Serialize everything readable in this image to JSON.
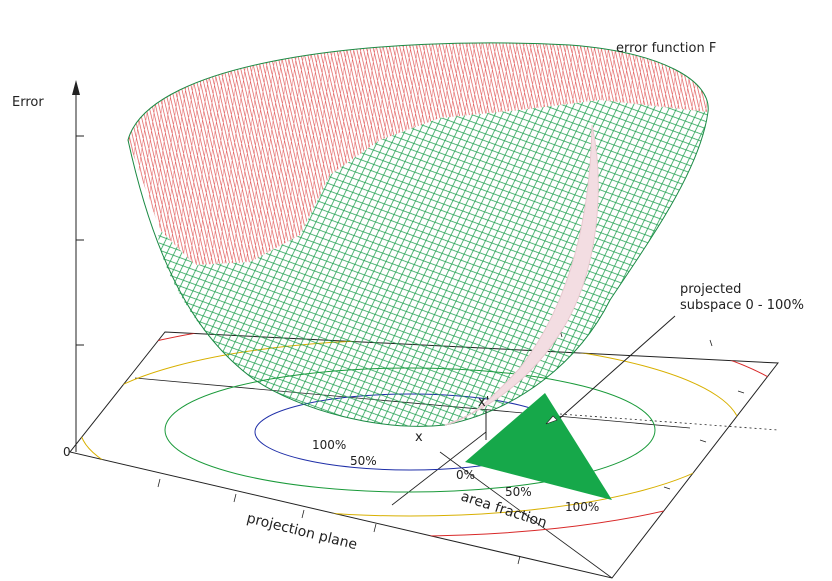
{
  "labels": {
    "error_axis": "Error",
    "zero": "0",
    "error_function": "error function F",
    "projected_line1": "projected",
    "projected_line2": "subspace 0 - 100%",
    "x_prime": "x'",
    "x": "x",
    "plane_100": "100%",
    "plane_50": "50%",
    "area_0": "0%",
    "area_50": "50%",
    "area_100": "100%",
    "area_fraction": "area fraction",
    "projection_plane": "projection plane"
  },
  "colors": {
    "mesh_top": "#e05050",
    "mesh_bottom": "#20a050",
    "triangle": "#16a84a",
    "subspace_slice": "#f3dde2",
    "contour_blue": "#1f2fa8",
    "contour_green": "#1a9a3a",
    "contour_yellow": "#d8b000",
    "contour_red": "#d82828",
    "axis": "#222222"
  }
}
